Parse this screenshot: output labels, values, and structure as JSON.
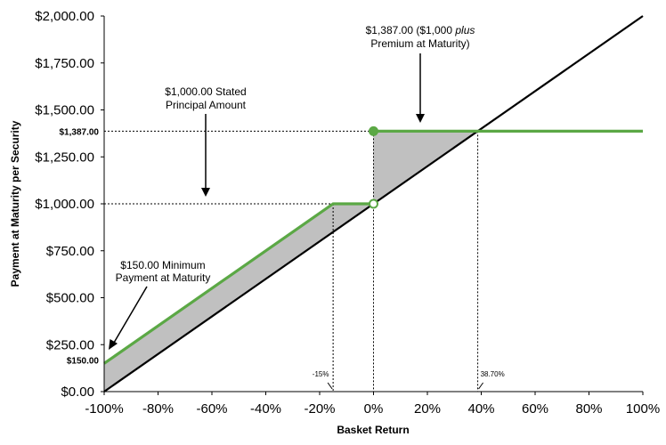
{
  "chart_data": {
    "type": "line",
    "title": "",
    "xlabel": "Basket Return",
    "ylabel": "Payment at Maturity per Security",
    "xlim": [
      -100,
      100
    ],
    "ylim": [
      0,
      2000
    ],
    "x_ticks": [
      "-100%",
      "-80%",
      "-60%",
      "-40%",
      "-20%",
      "0%",
      "20%",
      "40%",
      "60%",
      "80%",
      "100%"
    ],
    "x_tick_values": [
      -100,
      -80,
      -60,
      -40,
      -20,
      0,
      20,
      40,
      60,
      80,
      100
    ],
    "y_ticks": [
      "$0.00",
      "$250.00",
      "$500.00",
      "$750.00",
      "$1,000.00",
      "$1,250.00",
      "$1,500.00",
      "$1,750.00",
      "$2,000.00"
    ],
    "y_tick_values": [
      0,
      250,
      500,
      750,
      1000,
      1250,
      1500,
      1750,
      2000
    ],
    "extra_y_labels": [
      {
        "value": 1387,
        "label": "$1,387.00"
      },
      {
        "value": 150,
        "label": "$150.00"
      }
    ],
    "marker_labels": [
      {
        "x": -15,
        "label": "-15%"
      },
      {
        "x": 38.7,
        "label": "38.70%"
      }
    ],
    "series": [
      {
        "color": "#000000",
        "x": [
          -100,
          100
        ],
        "y": [
          0,
          2000
        ]
      },
      {
        "color": "#5ba845",
        "x": [
          -100,
          -15,
          0
        ],
        "y": [
          150,
          1000,
          1000
        ]
      },
      {
        "color": "#5ba845",
        "x": [
          0,
          38.7,
          100
        ],
        "y": [
          1387,
          1387,
          1387
        ]
      }
    ],
    "points": [
      {
        "x": 0,
        "y": 1387,
        "fill": "#5ba845"
      },
      {
        "x": 0,
        "y": 1000,
        "fill": "#ffffff"
      }
    ],
    "shading_color": "#c0c0c0",
    "grid": false,
    "annotations": [
      {
        "lines": [
          "$1,000.00 Stated",
          "Principal Amount"
        ]
      },
      {
        "lines": [
          "$1,387.00 ($1,000 ",
          "plus",
          "Premium at Maturity)"
        ]
      },
      {
        "lines": [
          "$150.00 Minimum",
          "Payment at Maturity"
        ]
      }
    ]
  }
}
